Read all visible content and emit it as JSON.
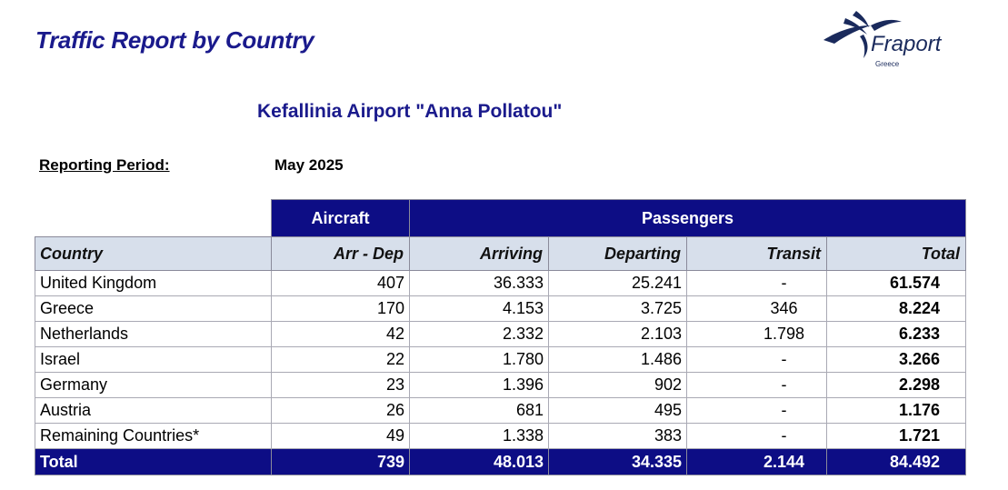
{
  "report": {
    "title": "Traffic Report by Country",
    "airport": "Kefallinia Airport \"Anna Pollatou\"",
    "period_label": "Reporting Period:",
    "period_value": "May 2025"
  },
  "logo": {
    "brand": "Fraport",
    "subtitle": "Greece",
    "color": "#1a2a5c"
  },
  "table": {
    "group_headers": {
      "aircraft": "Aircraft",
      "passengers": "Passengers"
    },
    "columns": [
      "Country",
      "Arr - Dep",
      "Arriving",
      "Departing",
      "Transit",
      "Total"
    ],
    "rows": [
      [
        "United Kingdom",
        "407",
        "36.333",
        "25.241",
        "-",
        "61.574"
      ],
      [
        "Greece",
        "170",
        "4.153",
        "3.725",
        "346",
        "8.224"
      ],
      [
        "Netherlands",
        "42",
        "2.332",
        "2.103",
        "1.798",
        "6.233"
      ],
      [
        "Israel",
        "22",
        "1.780",
        "1.486",
        "-",
        "3.266"
      ],
      [
        "Germany",
        "23",
        "1.396",
        "902",
        "-",
        "2.298"
      ],
      [
        "Austria",
        "26",
        "681",
        "495",
        "-",
        "1.176"
      ],
      [
        "Remaining Countries*",
        "49",
        "1.338",
        "383",
        "-",
        "1.721"
      ]
    ],
    "total": [
      "Total",
      "739",
      "48.013",
      "34.335",
      "2.144",
      "84.492"
    ]
  },
  "colors": {
    "title_blue": "#1a1a8c",
    "header_navy": "#0d0d85",
    "column_header_bg": "#d7dfeb"
  }
}
